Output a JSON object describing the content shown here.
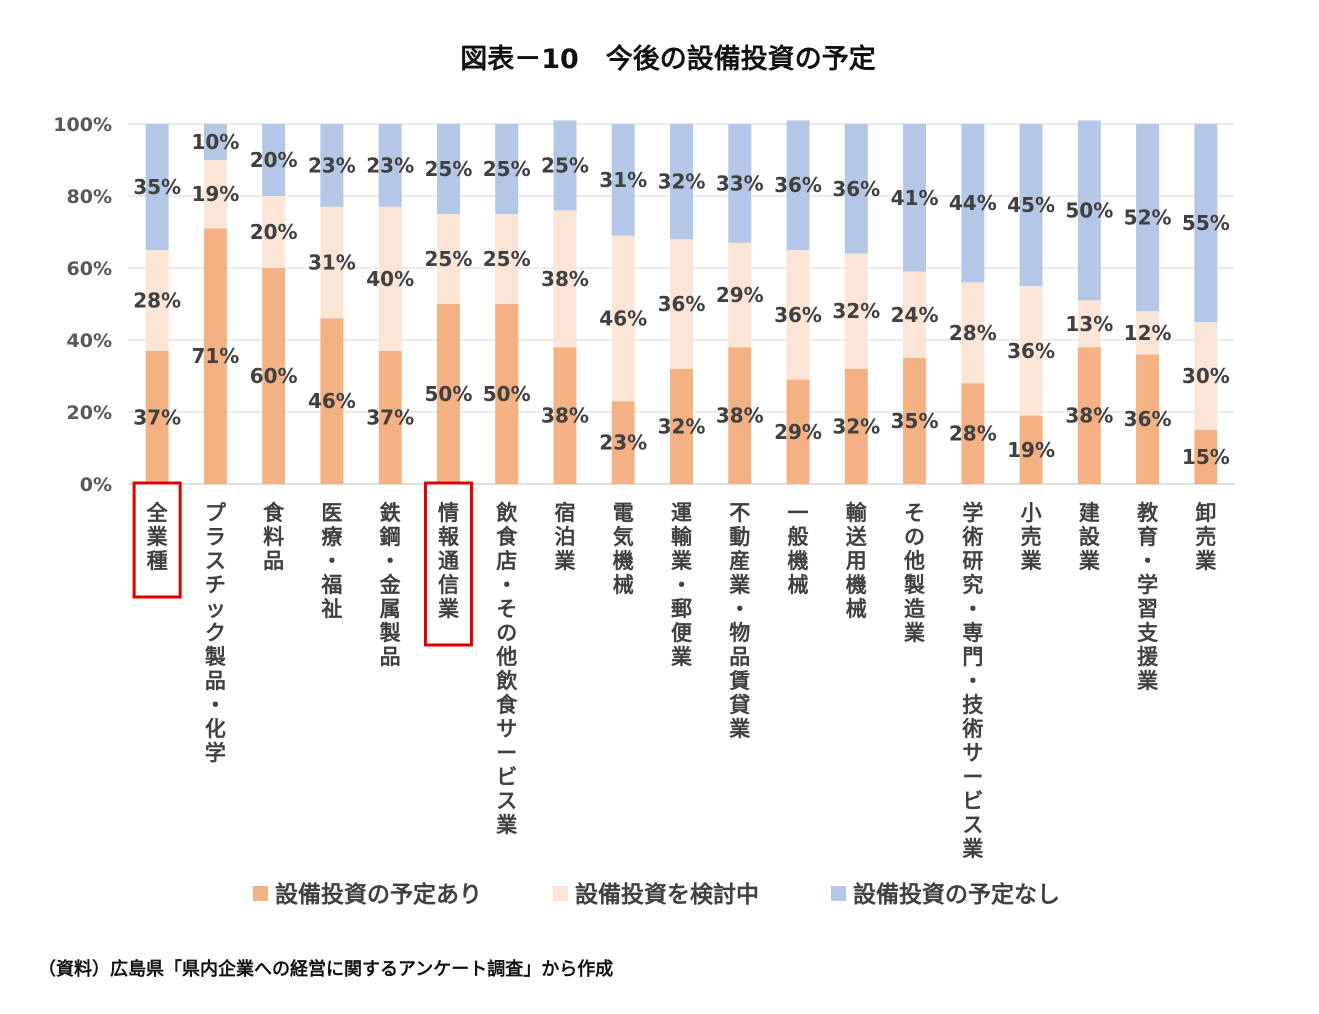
{
  "chart_data": {
    "type": "bar",
    "stacked": true,
    "title": "図表－10　今後の設備投資の予定",
    "categories": [
      "全業種",
      "プラスチック製品・化学",
      "食料品",
      "医療・福祉",
      "鉄鋼・金属製品",
      "情報通信業",
      "飲食店・その他飲食サービス業",
      "宿泊業",
      "電気機械",
      "運輸業・郵便業",
      "不動産業・物品賃貸業",
      "一般機械",
      "輸送用機械",
      "その他製造業",
      "学術研究・専門・技術サービス業",
      "小売業",
      "建設業",
      "教育・学習支援業",
      "卸売業"
    ],
    "highlighted_categories": [
      "全業種",
      "情報通信業"
    ],
    "series": [
      {
        "name": "設備投資の予定あり",
        "color": "#F4B183",
        "values": [
          37,
          71,
          60,
          46,
          37,
          50,
          50,
          38,
          23,
          32,
          38,
          29,
          32,
          35,
          28,
          19,
          38,
          36,
          15
        ]
      },
      {
        "name": "設備投資を検討中",
        "color": "#FBE5D6",
        "values": [
          28,
          19,
          20,
          31,
          40,
          25,
          25,
          38,
          46,
          36,
          29,
          36,
          32,
          24,
          28,
          36,
          13,
          12,
          30
        ]
      },
      {
        "name": "設備投資の予定なし",
        "color": "#B4C7E7",
        "values": [
          35,
          10,
          20,
          23,
          23,
          25,
          25,
          25,
          31,
          32,
          33,
          36,
          36,
          41,
          44,
          45,
          50,
          52,
          55
        ]
      }
    ],
    "yticks": [
      "0%",
      "20%",
      "40%",
      "60%",
      "80%",
      "100%"
    ],
    "ylim": [
      0,
      100
    ],
    "grid": true,
    "legend_position": "bottom",
    "highlight_color": "#E00000"
  },
  "source_note": "（資料）広島県「県内企業への経営に関するアンケート調査」から作成"
}
